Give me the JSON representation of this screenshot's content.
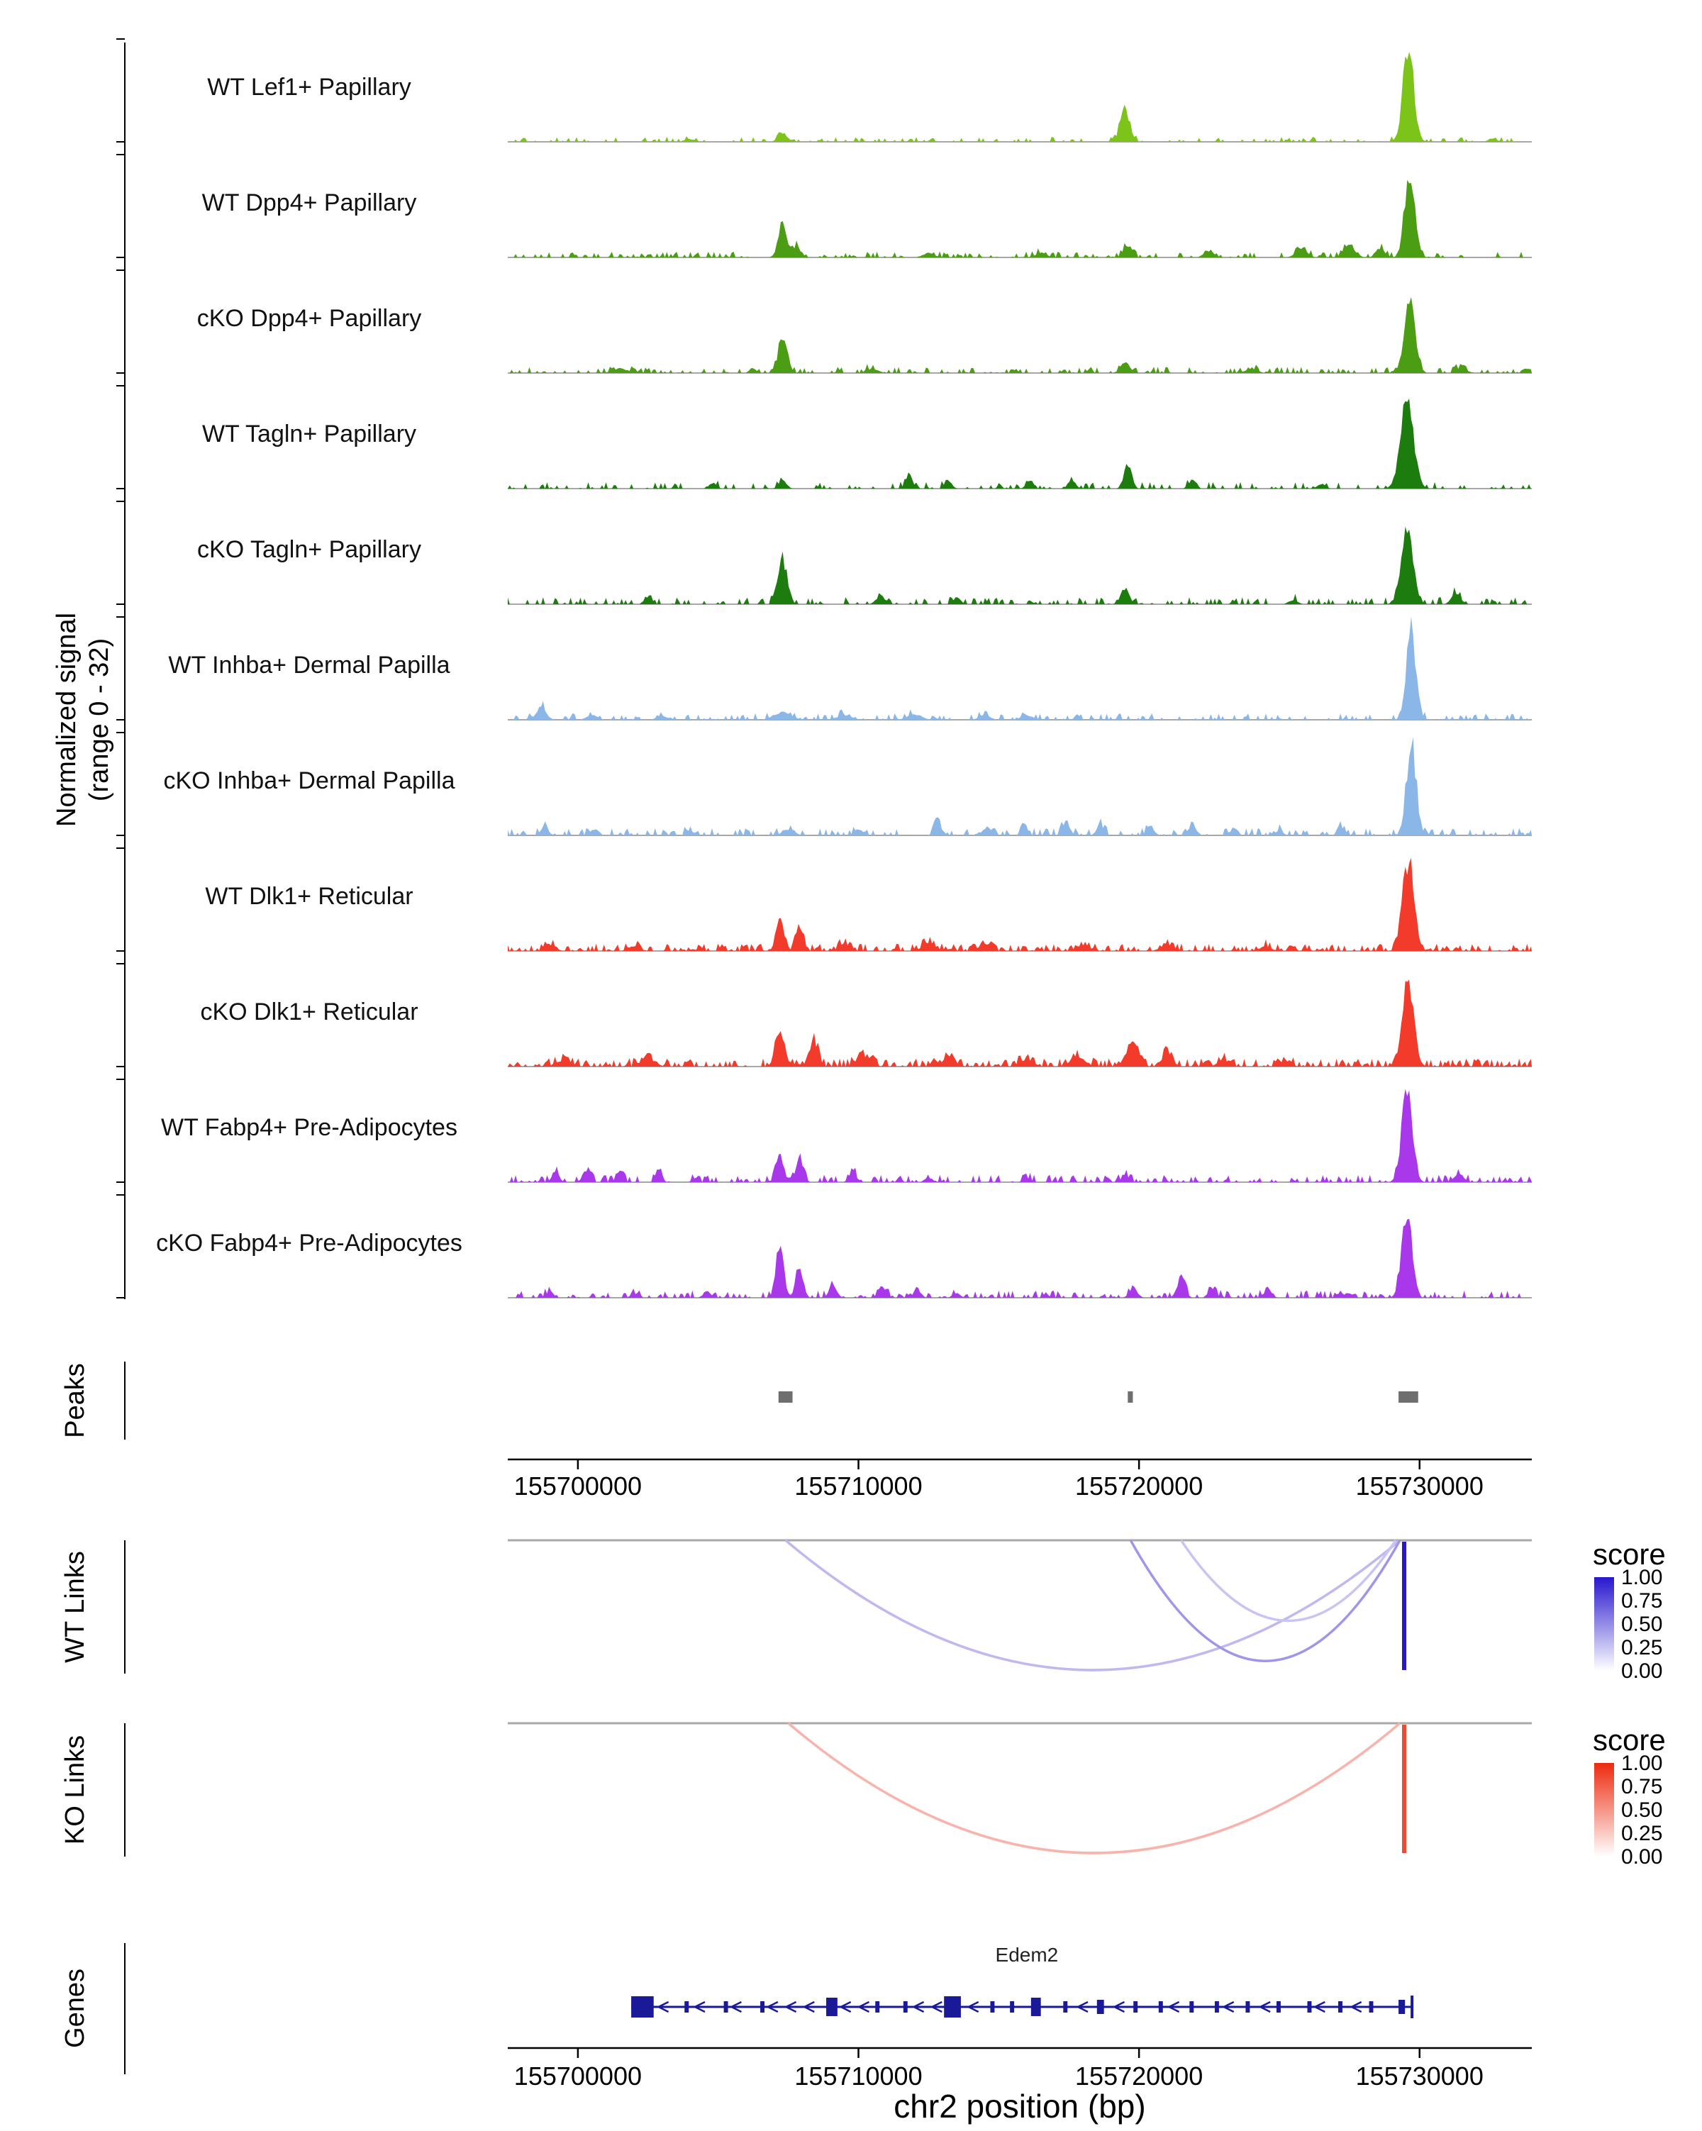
{
  "chart_data": {
    "type": "area",
    "title": "",
    "xlabel": "chr2 position (bp)",
    "x_axis": {
      "chrom": "chr2",
      "xmin": 155697500,
      "xmax": 155734000,
      "ticks": [
        155700000,
        155710000,
        155720000,
        155730000
      ],
      "tick_labels": [
        "155700000",
        "155710000",
        "155720000",
        "155730000"
      ]
    },
    "coverage": {
      "ylabel_line1": "Normalized signal",
      "ylabel_line2": "(range 0 - 32)",
      "yrange": [
        0,
        32
      ],
      "tracks": [
        {
          "label": "WT Lef1+ Papillary",
          "color": "#7CC41A",
          "seed": 101,
          "noise_p": 0.22,
          "noise_amp": 0.035,
          "peaks": [
            [
              155704000,
              0.03,
              200
            ],
            [
              155707300,
              0.1,
              160
            ],
            [
              155719500,
              0.36,
              170
            ],
            [
              155729600,
              1.0,
              190
            ],
            [
              155732600,
              0.04,
              150
            ]
          ]
        },
        {
          "label": "WT Dpp4+ Papillary",
          "color": "#4B9E13",
          "seed": 102,
          "noise_p": 0.3,
          "noise_amp": 0.04,
          "peaks": [
            [
              155707300,
              0.4,
              150
            ],
            [
              155707800,
              0.12,
              150
            ],
            [
              155712500,
              0.05,
              200
            ],
            [
              155716500,
              0.05,
              200
            ],
            [
              155719600,
              0.13,
              150
            ],
            [
              155722500,
              0.07,
              180
            ],
            [
              155725800,
              0.1,
              200
            ],
            [
              155727500,
              0.13,
              200
            ],
            [
              155728600,
              0.1,
              150
            ],
            [
              155729650,
              0.92,
              180
            ]
          ]
        },
        {
          "label": "cKO Dpp4+ Papillary",
          "color": "#4B9E13",
          "seed": 103,
          "noise_p": 0.34,
          "noise_amp": 0.042,
          "peaks": [
            [
              155701500,
              0.05,
              250
            ],
            [
              155707300,
              0.36,
              170
            ],
            [
              155710500,
              0.05,
              200
            ],
            [
              155719500,
              0.12,
              160
            ],
            [
              155724000,
              0.05,
              200
            ],
            [
              155729650,
              0.84,
              190
            ],
            [
              155731500,
              0.06,
              180
            ]
          ]
        },
        {
          "label": "WT Tagln+ Papillary",
          "color": "#1D7C0E",
          "seed": 104,
          "noise_p": 0.26,
          "noise_amp": 0.045,
          "peaks": [
            [
              155704800,
              0.06,
              130
            ],
            [
              155707300,
              0.1,
              130
            ],
            [
              155711800,
              0.16,
              120
            ],
            [
              155713200,
              0.09,
              120
            ],
            [
              155716100,
              0.1,
              120
            ],
            [
              155717600,
              0.11,
              120
            ],
            [
              155719600,
              0.26,
              140
            ],
            [
              155721900,
              0.1,
              130
            ],
            [
              155726500,
              0.05,
              150
            ],
            [
              155729550,
              1.0,
              230
            ]
          ]
        },
        {
          "label": "cKO Tagln+ Papillary",
          "color": "#1D7C0E",
          "seed": 105,
          "noise_p": 0.34,
          "noise_amp": 0.048,
          "peaks": [
            [
              155702500,
              0.07,
              140
            ],
            [
              155707300,
              0.48,
              160
            ],
            [
              155710800,
              0.09,
              160
            ],
            [
              155713500,
              0.07,
              140
            ],
            [
              155719500,
              0.18,
              150
            ],
            [
              155725500,
              0.05,
              150
            ],
            [
              155729550,
              0.78,
              210
            ],
            [
              155731300,
              0.11,
              170
            ]
          ]
        },
        {
          "label": "WT Inhba+ Dermal Papilla",
          "color": "#8AB7E8",
          "seed": 106,
          "noise_p": 0.3,
          "noise_amp": 0.045,
          "peaks": [
            [
              155698700,
              0.14,
              170
            ],
            [
              155700500,
              0.05,
              200
            ],
            [
              155703000,
              0.04,
              200
            ],
            [
              155707300,
              0.08,
              300
            ],
            [
              155709500,
              0.05,
              250
            ],
            [
              155712000,
              0.06,
              250
            ],
            [
              155714500,
              0.05,
              200
            ],
            [
              155716000,
              0.05,
              200
            ],
            [
              155729700,
              1.0,
              170
            ]
          ]
        },
        {
          "label": "cKO Inhba+ Dermal Papilla",
          "color": "#8AB7E8",
          "seed": 107,
          "noise_p": 0.42,
          "noise_amp": 0.05,
          "peaks": [
            [
              155698800,
              0.09,
              140
            ],
            [
              155700600,
              0.07,
              140
            ],
            [
              155704000,
              0.05,
              140
            ],
            [
              155707500,
              0.07,
              200
            ],
            [
              155710000,
              0.07,
              140
            ],
            [
              155712800,
              0.2,
              110
            ],
            [
              155714600,
              0.1,
              110
            ],
            [
              155715900,
              0.13,
              110
            ],
            [
              155717400,
              0.16,
              130
            ],
            [
              155718600,
              0.11,
              120
            ],
            [
              155720400,
              0.11,
              130
            ],
            [
              155721900,
              0.13,
              130
            ],
            [
              155723400,
              0.09,
              120
            ],
            [
              155725000,
              0.06,
              120
            ],
            [
              155727200,
              0.09,
              130
            ],
            [
              155729700,
              1.0,
              170
            ]
          ]
        },
        {
          "label": "WT Dlk1+ Reticular",
          "color": "#F23B2B",
          "seed": 108,
          "noise_p": 0.5,
          "noise_amp": 0.05,
          "peaks": [
            [
              155699000,
              0.07,
              180
            ],
            [
              155702000,
              0.05,
              200
            ],
            [
              155707200,
              0.33,
              140
            ],
            [
              155707900,
              0.26,
              130
            ],
            [
              155709500,
              0.09,
              180
            ],
            [
              155712500,
              0.09,
              220
            ],
            [
              155714500,
              0.07,
              200
            ],
            [
              155718000,
              0.07,
              220
            ],
            [
              155721000,
              0.07,
              220
            ],
            [
              155724500,
              0.05,
              200
            ],
            [
              155729600,
              1.0,
              200
            ]
          ]
        },
        {
          "label": "cKO Dlk1+ Reticular",
          "color": "#F23B2B",
          "seed": 109,
          "noise_p": 0.6,
          "noise_amp": 0.055,
          "peaks": [
            [
              155699500,
              0.07,
              250
            ],
            [
              155702500,
              0.09,
              250
            ],
            [
              155707200,
              0.4,
              160
            ],
            [
              155708400,
              0.28,
              160
            ],
            [
              155710200,
              0.11,
              250
            ],
            [
              155713200,
              0.09,
              250
            ],
            [
              155716000,
              0.07,
              250
            ],
            [
              155717800,
              0.11,
              250
            ],
            [
              155719800,
              0.26,
              200
            ],
            [
              155721000,
              0.14,
              180
            ],
            [
              155723000,
              0.07,
              200
            ],
            [
              155725200,
              0.07,
              200
            ],
            [
              155729600,
              0.9,
              200
            ]
          ]
        },
        {
          "label": "WT Fabp4+ Pre-Adipocytes",
          "color": "#A838EA",
          "seed": 110,
          "noise_p": 0.4,
          "noise_amp": 0.05,
          "peaks": [
            [
              155699200,
              0.13,
              120
            ],
            [
              155700300,
              0.13,
              130
            ],
            [
              155701500,
              0.11,
              120
            ],
            [
              155702900,
              0.09,
              110
            ],
            [
              155704200,
              0.05,
              110
            ],
            [
              155707200,
              0.32,
              130
            ],
            [
              155707900,
              0.27,
              130
            ],
            [
              155709800,
              0.11,
              130
            ],
            [
              155712500,
              0.05,
              130
            ],
            [
              155716000,
              0.04,
              130
            ],
            [
              155719500,
              0.07,
              130
            ],
            [
              155729550,
              1.0,
              190
            ],
            [
              155731400,
              0.09,
              170
            ]
          ]
        },
        {
          "label": "cKO Fabp4+ Pre-Adipocytes",
          "color": "#A838EA",
          "seed": 111,
          "noise_p": 0.4,
          "noise_amp": 0.05,
          "peaks": [
            [
              155699000,
              0.07,
              130
            ],
            [
              155702000,
              0.04,
              130
            ],
            [
              155704600,
              0.07,
              130
            ],
            [
              155707200,
              0.52,
              140
            ],
            [
              155707900,
              0.32,
              130
            ],
            [
              155709100,
              0.14,
              130
            ],
            [
              155710900,
              0.11,
              130
            ],
            [
              155712100,
              0.09,
              130
            ],
            [
              155713500,
              0.05,
              130
            ],
            [
              155719800,
              0.11,
              140
            ],
            [
              155721500,
              0.23,
              140
            ],
            [
              155722600,
              0.11,
              130
            ],
            [
              155724600,
              0.09,
              130
            ],
            [
              155727500,
              0.05,
              130
            ],
            [
              155729550,
              0.93,
              180
            ]
          ]
        }
      ]
    },
    "peaks": {
      "label": "Peaks",
      "color": "#6E6E6E",
      "intervals": [
        [
          155707150,
          155707650
        ],
        [
          155719600,
          155719780
        ],
        [
          155729250,
          155729950
        ]
      ]
    },
    "wt_links": {
      "label": "WT Links",
      "legend_title": "score",
      "legend_ticks": [
        "1.00",
        "0.75",
        "0.50",
        "0.25",
        "0.00"
      ],
      "high_color": "#2817CE",
      "links": [
        {
          "start": 155707400,
          "end": 155729300,
          "score": 0.3,
          "depth": 1.0
        },
        {
          "start": 155719700,
          "end": 155729300,
          "score": 0.45,
          "depth": 0.93
        },
        {
          "start": 155721500,
          "end": 155729150,
          "score": 0.25,
          "depth": 0.62
        },
        {
          "start": 155729380,
          "end": 155729520,
          "score": 1.0,
          "depth": 1.0
        }
      ]
    },
    "ko_links": {
      "label": "KO Links",
      "legend_title": "score",
      "legend_ticks": [
        "1.00",
        "0.75",
        "0.50",
        "0.25",
        "0.00"
      ],
      "high_color": "#EC2A0E",
      "links": [
        {
          "start": 155707500,
          "end": 155729300,
          "score": 0.35,
          "depth": 1.0
        },
        {
          "start": 155729380,
          "end": 155729520,
          "score": 0.85,
          "depth": 1.0
        }
      ]
    },
    "genes": {
      "label": "Genes",
      "gene_name": "Edem2",
      "color": "#1A1A99",
      "strand": "-",
      "start": 155701900,
      "end": 155729780,
      "exons": [
        [
          155701900,
          155702700,
          30
        ],
        [
          155703800,
          155703950,
          16
        ],
        [
          155705200,
          155705350,
          16
        ],
        [
          155706500,
          155706650,
          16
        ],
        [
          155708850,
          155709250,
          26
        ],
        [
          155710600,
          155710750,
          16
        ],
        [
          155711600,
          155711750,
          16
        ],
        [
          155713050,
          155713650,
          30
        ],
        [
          155714700,
          155714850,
          16
        ],
        [
          155715400,
          155715550,
          16
        ],
        [
          155716150,
          155716500,
          26
        ],
        [
          155717300,
          155717450,
          16
        ],
        [
          155718500,
          155718750,
          20
        ],
        [
          155719800,
          155719950,
          16
        ],
        [
          155720700,
          155720850,
          16
        ],
        [
          155721800,
          155721950,
          16
        ],
        [
          155722700,
          155722850,
          16
        ],
        [
          155723800,
          155723950,
          16
        ],
        [
          155724900,
          155725050,
          16
        ],
        [
          155726000,
          155726150,
          16
        ],
        [
          155727100,
          155727250,
          16
        ],
        [
          155728200,
          155728350,
          16
        ],
        [
          155729250,
          155729480,
          20
        ],
        [
          155729680,
          155729780,
          32
        ]
      ]
    }
  }
}
